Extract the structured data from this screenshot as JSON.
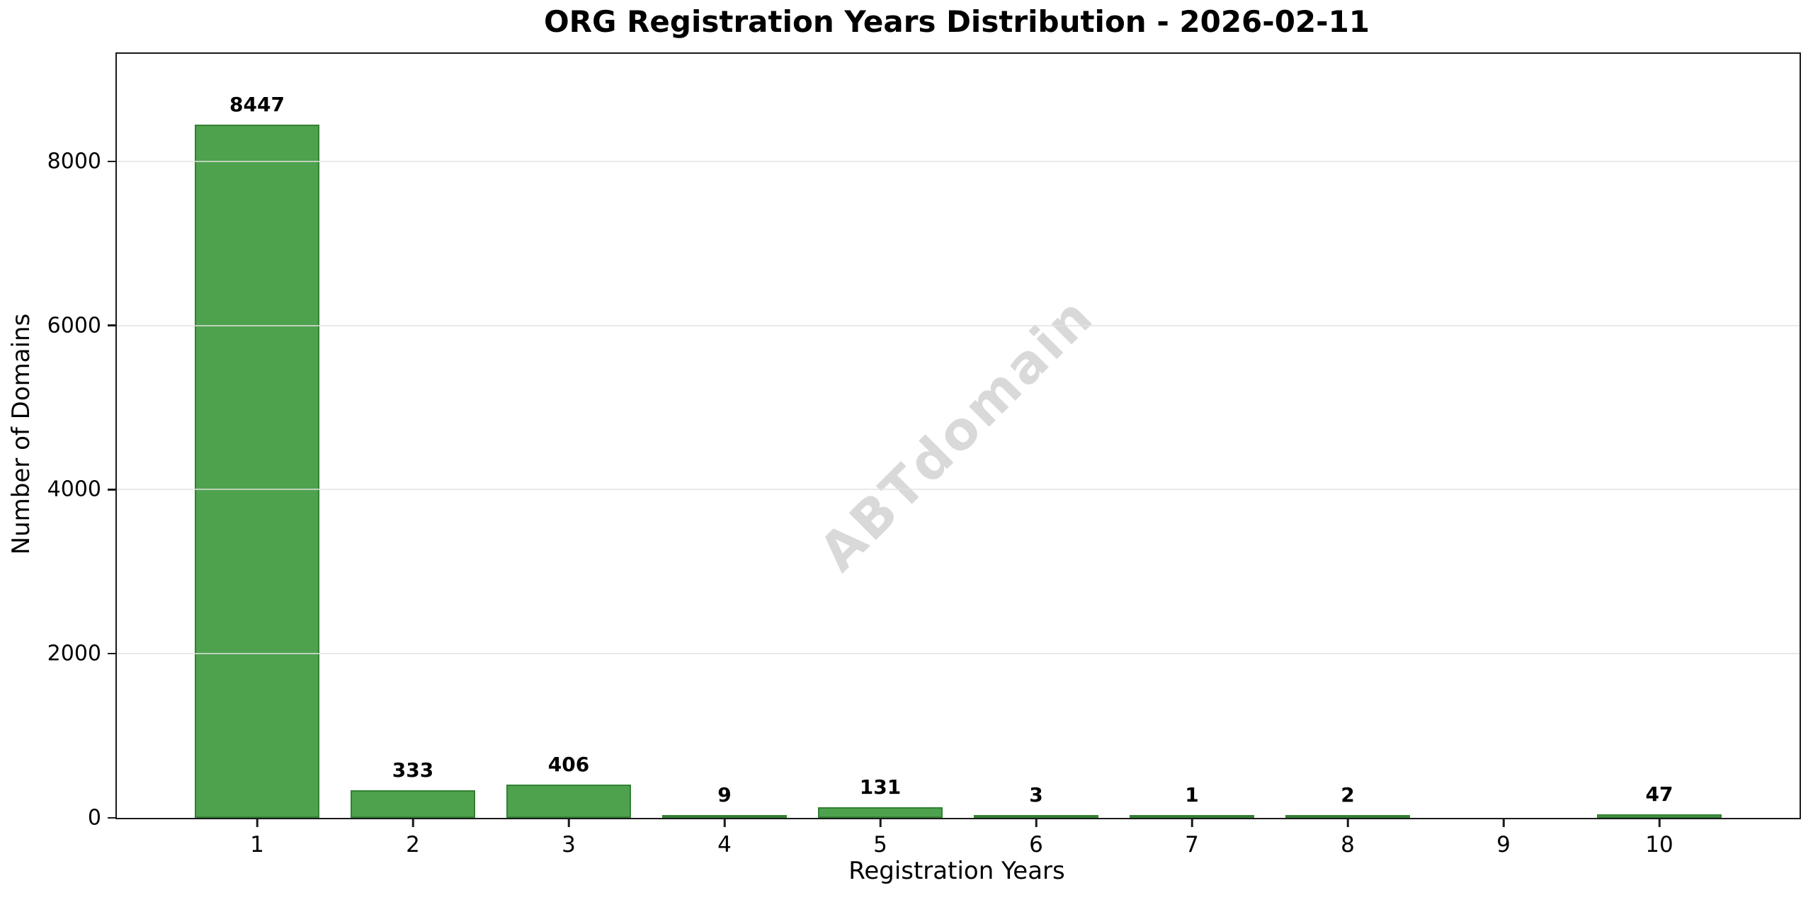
{
  "figure": {
    "background": "#ffffff"
  },
  "chart_data": {
    "type": "bar",
    "title": "ORG Registration Years Distribution - 2026-02-11",
    "xlabel": "Registration Years",
    "ylabel": "Number of Domains",
    "categories": [
      "1",
      "2",
      "3",
      "4",
      "5",
      "6",
      "7",
      "8",
      "9",
      "10"
    ],
    "values": [
      8447,
      333,
      406,
      9,
      131,
      3,
      1,
      2,
      0,
      47
    ],
    "bar_labels": [
      "8447",
      "333",
      "406",
      "9",
      "131",
      "3",
      "1",
      "2",
      "",
      "47"
    ],
    "yticks": [
      0,
      2000,
      4000,
      6000,
      8000
    ],
    "ytick_labels": [
      "0",
      "2000",
      "4000",
      "6000",
      "8000"
    ],
    "ylim": [
      0,
      9310
    ],
    "xlim": [
      0.1,
      10.9
    ],
    "bar_width": 0.8,
    "grid": "horizontal-only",
    "legend": null,
    "watermark": "ABTdomain",
    "colors": {
      "bar_fill": "#4EA24E",
      "bar_edge": "#338033",
      "gridline": "rgba(225,225,225,0.75)",
      "axis": "#1a1a1a",
      "text": "#000000",
      "watermark": "#d9d9d9"
    }
  }
}
